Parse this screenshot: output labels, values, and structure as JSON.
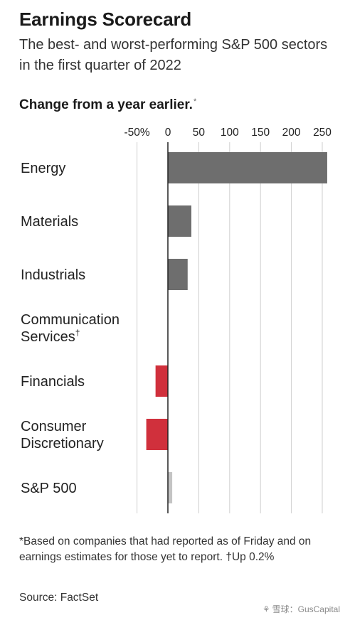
{
  "header": {
    "title": "Earnings Scorecard",
    "subtitle": "The best- and worst-performing S&P 500 sectors in the first quarter of 2022",
    "section_label": "Change from a year earlier.",
    "section_label_marker": "*"
  },
  "footer": {
    "note": "*Based on companies that had reported as of Friday and on earnings estimates for those yet to report. †Up 0.2%",
    "source": "Source: FactSet",
    "watermark": "雪球：GusCapital"
  },
  "colors": {
    "positive": "#6e6e6e",
    "negative": "#d0303c",
    "grid": "#cfcfcf",
    "axis": "#222222",
    "text": "#222222"
  },
  "chart_data": {
    "type": "bar",
    "orientation": "horizontal",
    "categories": [
      "Energy",
      "Materials",
      "Industrials",
      "Communication Services†",
      "Financials",
      "Consumer Discretionary",
      "S&P 500"
    ],
    "category_lines": [
      [
        "Energy"
      ],
      [
        "Materials"
      ],
      [
        "Industrials"
      ],
      [
        "Communication",
        "Services†"
      ],
      [
        "Financials"
      ],
      [
        "Consumer",
        "Discretionary"
      ],
      [
        "S&P 500"
      ]
    ],
    "values": [
      258,
      38,
      32,
      0.2,
      -20,
      -35,
      7
    ],
    "xlim": [
      -50,
      260
    ],
    "xticks": [
      -50,
      0,
      50,
      100,
      150,
      200,
      250
    ],
    "xtick_labels": [
      "-50%",
      "0",
      "50",
      "100",
      "150",
      "200",
      "250"
    ],
    "grid": true,
    "legend": "none"
  }
}
